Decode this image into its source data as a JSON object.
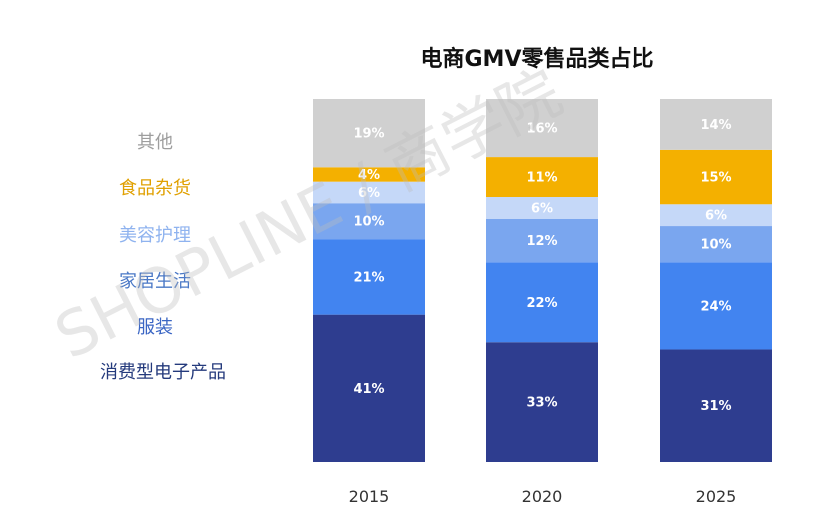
{
  "chart_data": {
    "type": "bar",
    "stacked": true,
    "title": "电商GMV零售品类占比",
    "categories": [
      "2015",
      "2020",
      "2025"
    ],
    "series": [
      {
        "name": "消费型电子产品",
        "color": "#2e3d8f",
        "labelColor": "#ffffff",
        "values": [
          41,
          33,
          31
        ],
        "labels": [
          "41%",
          "33%",
          "31%"
        ]
      },
      {
        "name": "服装",
        "color": "#4284f0",
        "labelColor": "#ffffff",
        "values": [
          21,
          22,
          24
        ],
        "labels": [
          "21%",
          "22%",
          "24%"
        ]
      },
      {
        "name": "家居生活",
        "color": "#7aa6ef",
        "labelColor": "#ffffff",
        "values": [
          10,
          12,
          10
        ],
        "labels": [
          "10%",
          "12%",
          "10%"
        ]
      },
      {
        "name": "美容护理",
        "color": "#c5d8f8",
        "labelColor": "#ffffff",
        "values": [
          6,
          6,
          6
        ],
        "labels": [
          "6%",
          "6%",
          "6%"
        ]
      },
      {
        "name": "食品杂货",
        "color": "#f4b000",
        "labelColor": "#ffffff",
        "values": [
          4,
          11,
          15
        ],
        "labels": [
          "4%",
          "11%",
          "15%"
        ]
      },
      {
        "name": "其他",
        "color": "#d0d0d0",
        "labelColor": "#ffffff",
        "values": [
          19,
          16,
          14
        ],
        "labels": [
          "19%",
          "16%",
          "14%"
        ]
      }
    ],
    "legend": {
      "position": "left",
      "order": [
        "其他",
        "食品杂货",
        "美容护理",
        "家居生活",
        "服装",
        "消费型电子产品"
      ],
      "colors": {
        "其他": "#9e9e9e",
        "食品杂货": "#e0a000",
        "美容护理": "#8fb3ef",
        "家居生活": "#4a78c6",
        "服装": "#3b66c4",
        "消费型电子产品": "#243a7c"
      }
    }
  },
  "watermark": "SHOPLINE / 商学院"
}
